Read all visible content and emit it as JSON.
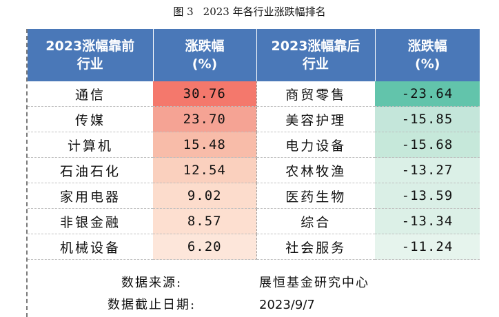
{
  "figure": {
    "number": "图 3",
    "title": "2023 年各行业涨跌幅排名"
  },
  "table": {
    "headers": {
      "top_industry": [
        "2023涨幅靠前",
        "行业"
      ],
      "top_change": [
        "涨跌幅",
        "(%)"
      ],
      "bottom_industry": [
        "2023涨幅靠后",
        "行业"
      ],
      "bottom_change": [
        "涨跌幅",
        "(%)"
      ]
    },
    "rows": [
      {
        "top_name": "通信",
        "top_value": "30.76",
        "bottom_name": "商贸零售",
        "bottom_value": "-23.64"
      },
      {
        "top_name": "传媒",
        "top_value": "23.70",
        "bottom_name": "美容护理",
        "bottom_value": "-15.85"
      },
      {
        "top_name": "计算机",
        "top_value": "15.48",
        "bottom_name": "电力设备",
        "bottom_value": "-15.68"
      },
      {
        "top_name": "石油石化",
        "top_value": "12.54",
        "bottom_name": "农林牧渔",
        "bottom_value": "-13.27"
      },
      {
        "top_name": "家用电器",
        "top_value": "9.02",
        "bottom_name": "医药生物",
        "bottom_value": "-13.59"
      },
      {
        "top_name": "非银金融",
        "top_value": "8.57",
        "bottom_name": "综合",
        "bottom_value": "-13.34"
      },
      {
        "top_name": "机械设备",
        "top_value": "6.20",
        "bottom_name": "社会服务",
        "bottom_value": "-11.24"
      }
    ],
    "colors": {
      "header_bg": "#4a78b8",
      "top_value_bg": [
        "#f4786c",
        "#f5a394",
        "#f8bca9",
        "#fad0be",
        "#fcdccc",
        "#fddfd0",
        "#fde6da"
      ],
      "bottom_value_bg": [
        "#62c4ab",
        "#c4e6da",
        "#c6e8da",
        "#dbf0e7",
        "#daefe6",
        "#dcf0e7",
        "#e6f4ed"
      ]
    }
  },
  "footer": {
    "source_label": "数据来源:",
    "source_value": "展恒基金研究中心",
    "date_label": "数据截止日期:",
    "date_value": "2023/9/7"
  }
}
